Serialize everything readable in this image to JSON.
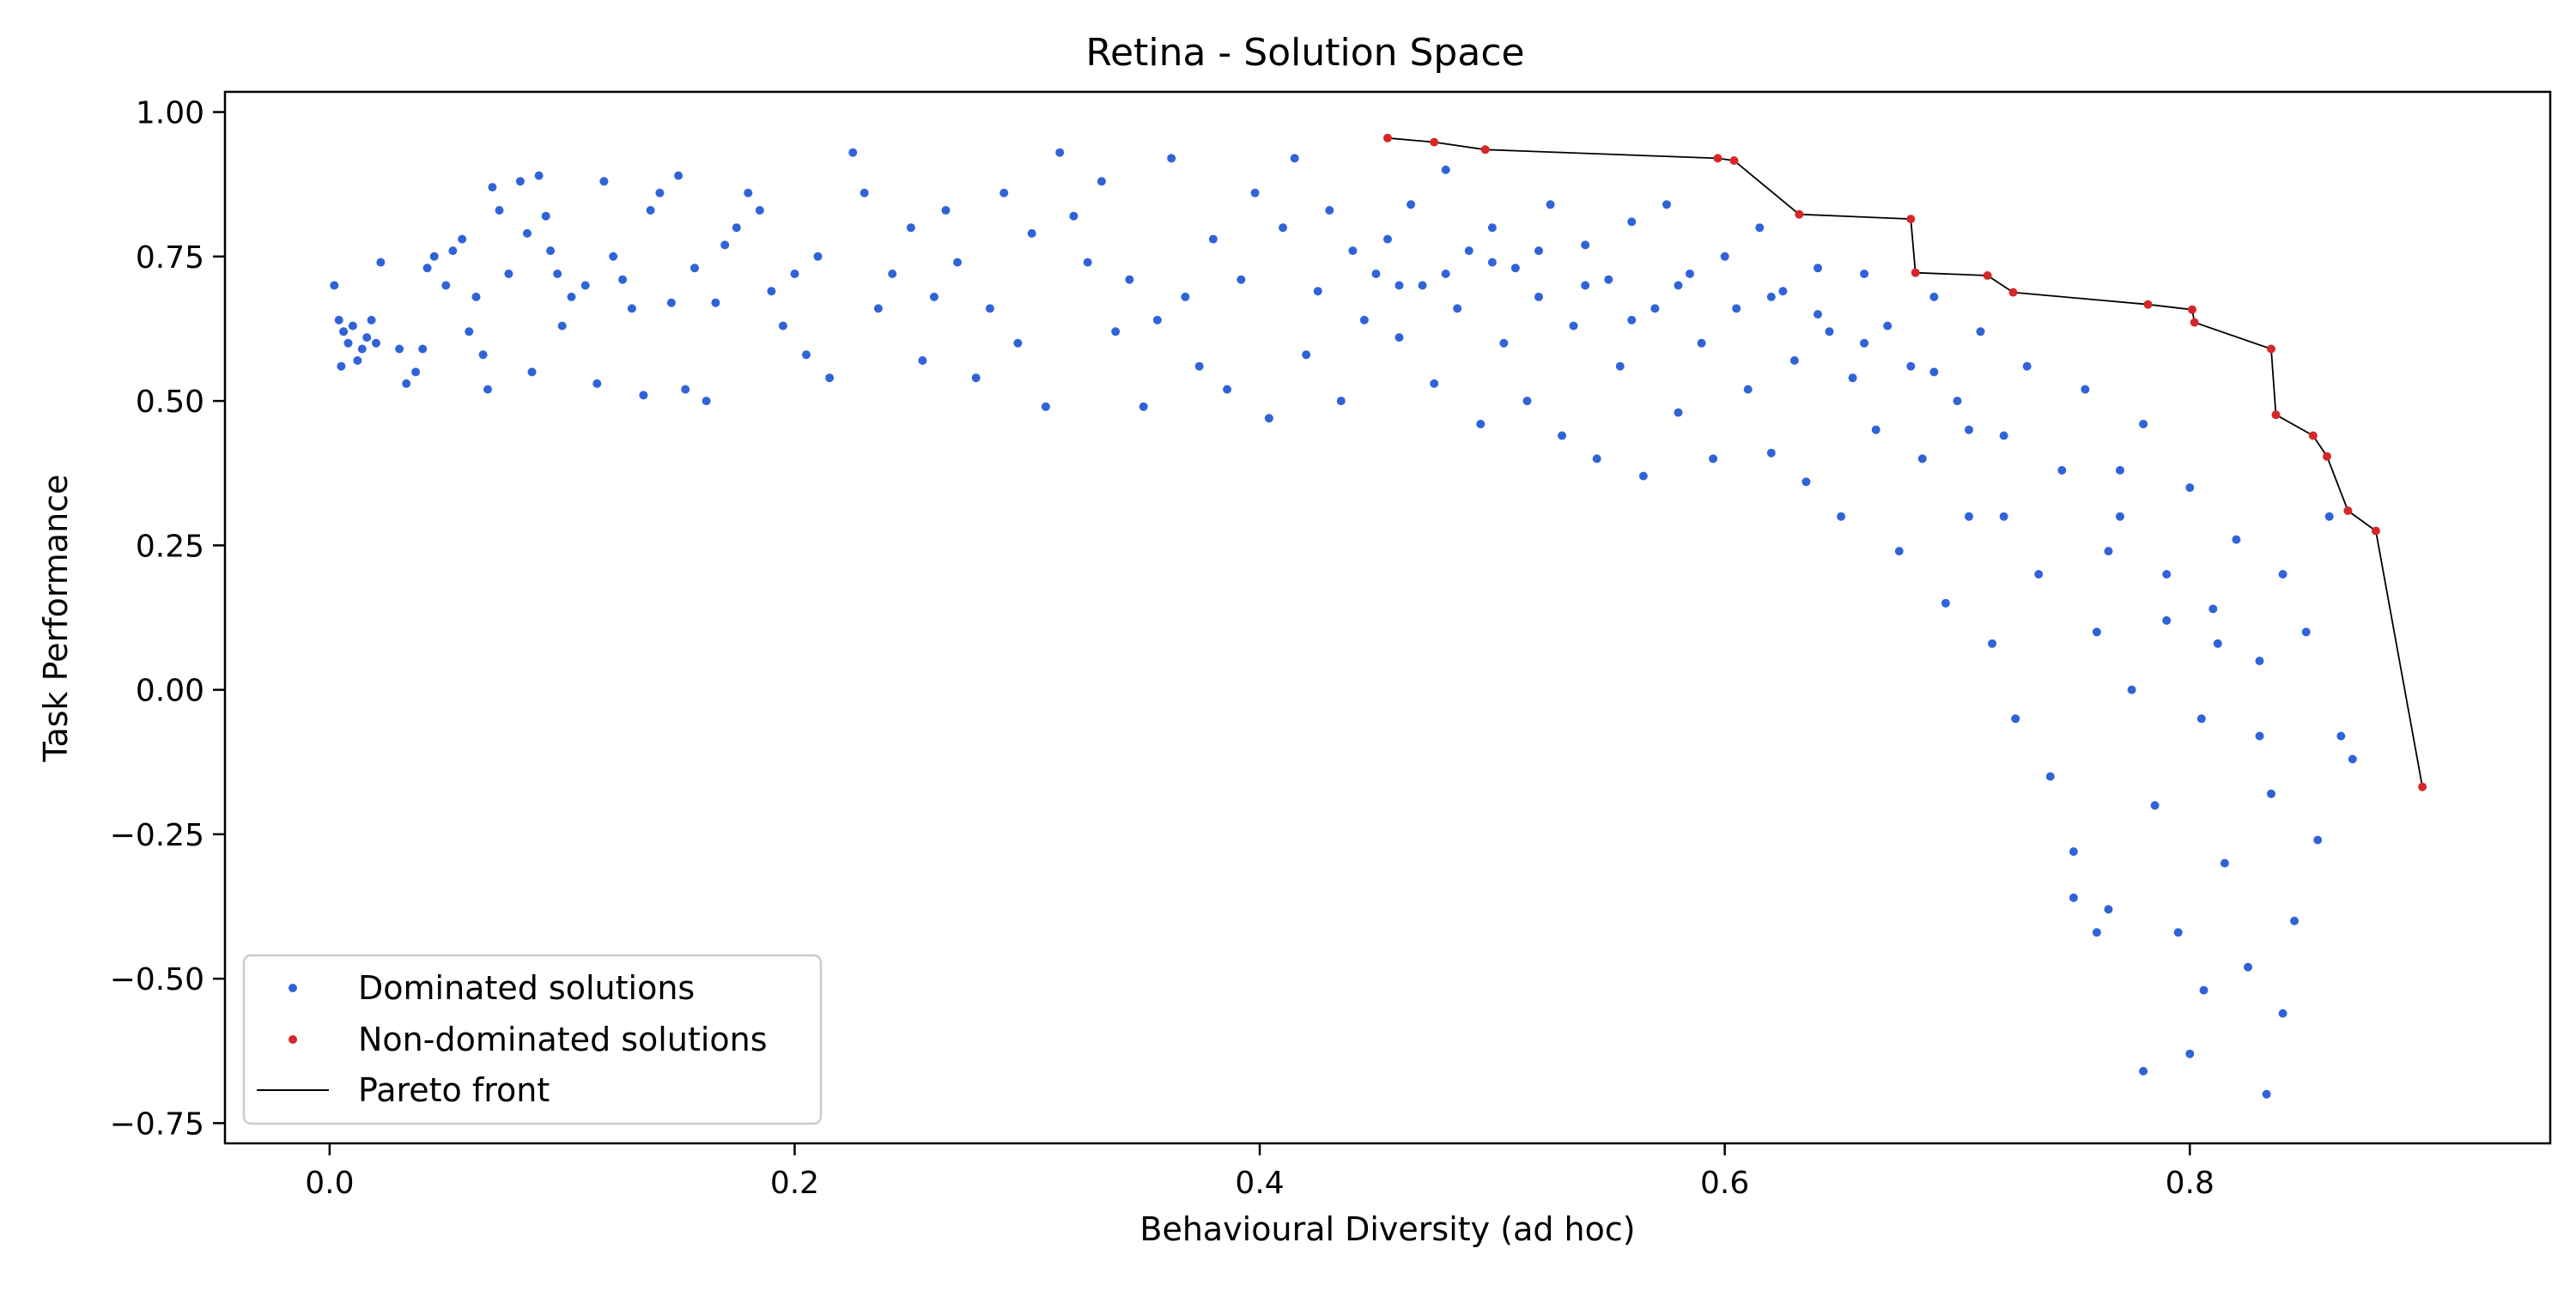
{
  "chart_data": {
    "type": "scatter",
    "title": "Retina - Solution Space",
    "xlabel": "Behavioural Diversity (ad hoc)",
    "ylabel": "Task Performance",
    "xlim": [
      -0.045,
      0.955
    ],
    "ylim": [
      -0.785,
      1.035
    ],
    "xticks": [
      0.0,
      0.2,
      0.4,
      0.6,
      0.8
    ],
    "xtick_labels": [
      "0.0",
      "0.2",
      "0.4",
      "0.6",
      "0.8"
    ],
    "yticks": [
      1.0,
      0.75,
      0.5,
      0.25,
      0.0,
      -0.25,
      -0.5,
      -0.75
    ],
    "ytick_labels": [
      "1.00",
      "0.75",
      "0.50",
      "0.25",
      "0.00",
      "−0.25",
      "−0.50",
      "−0.75"
    ],
    "grid": false,
    "legend_placement": "bottom-left",
    "colors": {
      "dominated": "#3163d8",
      "non_dominated": "#d62728",
      "pareto_line": "#000000"
    },
    "series": [
      {
        "name": "Dominated solutions",
        "points": [
          [
            0.002,
            0.7
          ],
          [
            0.004,
            0.64
          ],
          [
            0.006,
            0.62
          ],
          [
            0.008,
            0.6
          ],
          [
            0.01,
            0.63
          ],
          [
            0.012,
            0.57
          ],
          [
            0.014,
            0.59
          ],
          [
            0.016,
            0.61
          ],
          [
            0.018,
            0.64
          ],
          [
            0.02,
            0.6
          ],
          [
            0.005,
            0.56
          ],
          [
            0.022,
            0.74
          ],
          [
            0.03,
            0.59
          ],
          [
            0.033,
            0.53
          ],
          [
            0.037,
            0.55
          ],
          [
            0.04,
            0.59
          ],
          [
            0.042,
            0.73
          ],
          [
            0.045,
            0.75
          ],
          [
            0.05,
            0.7
          ],
          [
            0.053,
            0.76
          ],
          [
            0.057,
            0.78
          ],
          [
            0.06,
            0.62
          ],
          [
            0.063,
            0.68
          ],
          [
            0.066,
            0.58
          ],
          [
            0.068,
            0.52
          ],
          [
            0.07,
            0.87
          ],
          [
            0.073,
            0.83
          ],
          [
            0.077,
            0.72
          ],
          [
            0.082,
            0.88
          ],
          [
            0.085,
            0.79
          ],
          [
            0.087,
            0.55
          ],
          [
            0.09,
            0.89
          ],
          [
            0.093,
            0.82
          ],
          [
            0.095,
            0.76
          ],
          [
            0.098,
            0.72
          ],
          [
            0.1,
            0.63
          ],
          [
            0.104,
            0.68
          ],
          [
            0.11,
            0.7
          ],
          [
            0.115,
            0.53
          ],
          [
            0.118,
            0.88
          ],
          [
            0.122,
            0.75
          ],
          [
            0.126,
            0.71
          ],
          [
            0.13,
            0.66
          ],
          [
            0.135,
            0.51
          ],
          [
            0.138,
            0.83
          ],
          [
            0.142,
            0.86
          ],
          [
            0.147,
            0.67
          ],
          [
            0.15,
            0.89
          ],
          [
            0.153,
            0.52
          ],
          [
            0.157,
            0.73
          ],
          [
            0.162,
            0.5
          ],
          [
            0.166,
            0.67
          ],
          [
            0.17,
            0.77
          ],
          [
            0.175,
            0.8
          ],
          [
            0.18,
            0.86
          ],
          [
            0.185,
            0.83
          ],
          [
            0.19,
            0.69
          ],
          [
            0.195,
            0.63
          ],
          [
            0.2,
            0.72
          ],
          [
            0.205,
            0.58
          ],
          [
            0.21,
            0.75
          ],
          [
            0.215,
            0.54
          ],
          [
            0.225,
            0.93
          ],
          [
            0.23,
            0.86
          ],
          [
            0.236,
            0.66
          ],
          [
            0.242,
            0.72
          ],
          [
            0.25,
            0.8
          ],
          [
            0.255,
            0.57
          ],
          [
            0.26,
            0.68
          ],
          [
            0.265,
            0.83
          ],
          [
            0.27,
            0.74
          ],
          [
            0.278,
            0.54
          ],
          [
            0.284,
            0.66
          ],
          [
            0.29,
            0.86
          ],
          [
            0.296,
            0.6
          ],
          [
            0.302,
            0.79
          ],
          [
            0.308,
            0.49
          ],
          [
            0.314,
            0.93
          ],
          [
            0.32,
            0.82
          ],
          [
            0.326,
            0.74
          ],
          [
            0.332,
            0.88
          ],
          [
            0.338,
            0.62
          ],
          [
            0.344,
            0.71
          ],
          [
            0.35,
            0.49
          ],
          [
            0.356,
            0.64
          ],
          [
            0.362,
            0.92
          ],
          [
            0.368,
            0.68
          ],
          [
            0.374,
            0.56
          ],
          [
            0.38,
            0.78
          ],
          [
            0.386,
            0.52
          ],
          [
            0.392,
            0.71
          ],
          [
            0.398,
            0.86
          ],
          [
            0.404,
            0.47
          ],
          [
            0.41,
            0.8
          ],
          [
            0.415,
            0.92
          ],
          [
            0.42,
            0.58
          ],
          [
            0.425,
            0.69
          ],
          [
            0.43,
            0.83
          ],
          [
            0.435,
            0.5
          ],
          [
            0.44,
            0.76
          ],
          [
            0.445,
            0.64
          ],
          [
            0.45,
            0.72
          ],
          [
            0.455,
            0.78
          ],
          [
            0.46,
            0.61
          ],
          [
            0.465,
            0.84
          ],
          [
            0.47,
            0.7
          ],
          [
            0.475,
            0.53
          ],
          [
            0.48,
            0.9
          ],
          [
            0.485,
            0.66
          ],
          [
            0.49,
            0.76
          ],
          [
            0.495,
            0.46
          ],
          [
            0.5,
            0.8
          ],
          [
            0.505,
            0.6
          ],
          [
            0.51,
            0.73
          ],
          [
            0.515,
            0.5
          ],
          [
            0.52,
            0.68
          ],
          [
            0.525,
            0.84
          ],
          [
            0.53,
            0.44
          ],
          [
            0.535,
            0.63
          ],
          [
            0.54,
            0.77
          ],
          [
            0.545,
            0.4
          ],
          [
            0.55,
            0.71
          ],
          [
            0.555,
            0.56
          ],
          [
            0.56,
            0.81
          ],
          [
            0.565,
            0.37
          ],
          [
            0.57,
            0.66
          ],
          [
            0.575,
            0.84
          ],
          [
            0.58,
            0.48
          ],
          [
            0.585,
            0.72
          ],
          [
            0.59,
            0.6
          ],
          [
            0.595,
            0.4
          ],
          [
            0.6,
            0.75
          ],
          [
            0.605,
            0.66
          ],
          [
            0.61,
            0.52
          ],
          [
            0.615,
            0.8
          ],
          [
            0.62,
            0.41
          ],
          [
            0.625,
            0.69
          ],
          [
            0.63,
            0.57
          ],
          [
            0.635,
            0.36
          ],
          [
            0.64,
            0.73
          ],
          [
            0.645,
            0.62
          ],
          [
            0.65,
            0.3
          ],
          [
            0.655,
            0.54
          ],
          [
            0.66,
            0.72
          ],
          [
            0.665,
            0.45
          ],
          [
            0.67,
            0.63
          ],
          [
            0.675,
            0.24
          ],
          [
            0.68,
            0.56
          ],
          [
            0.685,
            0.4
          ],
          [
            0.69,
            0.68
          ],
          [
            0.695,
            0.15
          ],
          [
            0.7,
            0.5
          ],
          [
            0.705,
            0.3
          ],
          [
            0.71,
            0.62
          ],
          [
            0.715,
            0.08
          ],
          [
            0.72,
            0.44
          ],
          [
            0.725,
            -0.05
          ],
          [
            0.73,
            0.56
          ],
          [
            0.735,
            0.2
          ],
          [
            0.74,
            -0.15
          ],
          [
            0.745,
            0.38
          ],
          [
            0.75,
            -0.28
          ],
          [
            0.755,
            0.52
          ],
          [
            0.76,
            0.1
          ],
          [
            0.765,
            -0.38
          ],
          [
            0.77,
            0.3
          ],
          [
            0.775,
            0.0
          ],
          [
            0.78,
            0.46
          ],
          [
            0.785,
            -0.2
          ],
          [
            0.79,
            0.2
          ],
          [
            0.795,
            -0.42
          ],
          [
            0.8,
            0.35
          ],
          [
            0.805,
            -0.05
          ],
          [
            0.81,
            0.14
          ],
          [
            0.815,
            -0.3
          ],
          [
            0.82,
            0.26
          ],
          [
            0.825,
            -0.48
          ],
          [
            0.83,
            0.05
          ],
          [
            0.835,
            -0.18
          ],
          [
            0.84,
            0.2
          ],
          [
            0.845,
            -0.4
          ],
          [
            0.85,
            0.1
          ],
          [
            0.855,
            -0.26
          ],
          [
            0.86,
            0.3
          ],
          [
            0.865,
            -0.08
          ],
          [
            0.87,
            -0.12
          ],
          [
            0.78,
            -0.66
          ],
          [
            0.8,
            -0.63
          ],
          [
            0.833,
            -0.7
          ],
          [
            0.84,
            -0.56
          ],
          [
            0.806,
            -0.52
          ],
          [
            0.76,
            -0.42
          ],
          [
            0.75,
            -0.36
          ],
          [
            0.83,
            -0.08
          ],
          [
            0.812,
            0.08
          ],
          [
            0.79,
            0.12
          ],
          [
            0.765,
            0.24
          ],
          [
            0.77,
            0.38
          ],
          [
            0.72,
            0.3
          ],
          [
            0.705,
            0.45
          ],
          [
            0.69,
            0.55
          ],
          [
            0.66,
            0.6
          ],
          [
            0.64,
            0.65
          ],
          [
            0.62,
            0.68
          ],
          [
            0.58,
            0.7
          ],
          [
            0.56,
            0.64
          ],
          [
            0.54,
            0.7
          ],
          [
            0.52,
            0.76
          ],
          [
            0.5,
            0.74
          ],
          [
            0.48,
            0.72
          ],
          [
            0.46,
            0.7
          ]
        ]
      },
      {
        "name": "Non-dominated solutions",
        "points": [
          [
            0.455,
            0.955
          ],
          [
            0.475,
            0.948
          ],
          [
            0.497,
            0.935
          ],
          [
            0.597,
            0.92
          ],
          [
            0.604,
            0.916
          ],
          [
            0.632,
            0.823
          ],
          [
            0.68,
            0.815
          ],
          [
            0.682,
            0.722
          ],
          [
            0.713,
            0.717
          ],
          [
            0.724,
            0.688
          ],
          [
            0.782,
            0.667
          ],
          [
            0.801,
            0.658
          ],
          [
            0.802,
            0.636
          ],
          [
            0.835,
            0.59
          ],
          [
            0.837,
            0.476
          ],
          [
            0.853,
            0.44
          ],
          [
            0.859,
            0.404
          ],
          [
            0.868,
            0.31
          ],
          [
            0.88,
            0.275
          ],
          [
            0.9,
            -0.168
          ]
        ]
      }
    ],
    "pareto_front": {
      "name": "Pareto front",
      "points": [
        [
          0.455,
          0.955
        ],
        [
          0.475,
          0.948
        ],
        [
          0.497,
          0.935
        ],
        [
          0.597,
          0.92
        ],
        [
          0.604,
          0.916
        ],
        [
          0.632,
          0.823
        ],
        [
          0.68,
          0.815
        ],
        [
          0.682,
          0.722
        ],
        [
          0.713,
          0.717
        ],
        [
          0.724,
          0.688
        ],
        [
          0.782,
          0.667
        ],
        [
          0.801,
          0.658
        ],
        [
          0.802,
          0.636
        ],
        [
          0.835,
          0.59
        ],
        [
          0.837,
          0.476
        ],
        [
          0.853,
          0.44
        ],
        [
          0.859,
          0.404
        ],
        [
          0.868,
          0.31
        ],
        [
          0.88,
          0.275
        ],
        [
          0.9,
          -0.168
        ]
      ]
    }
  }
}
